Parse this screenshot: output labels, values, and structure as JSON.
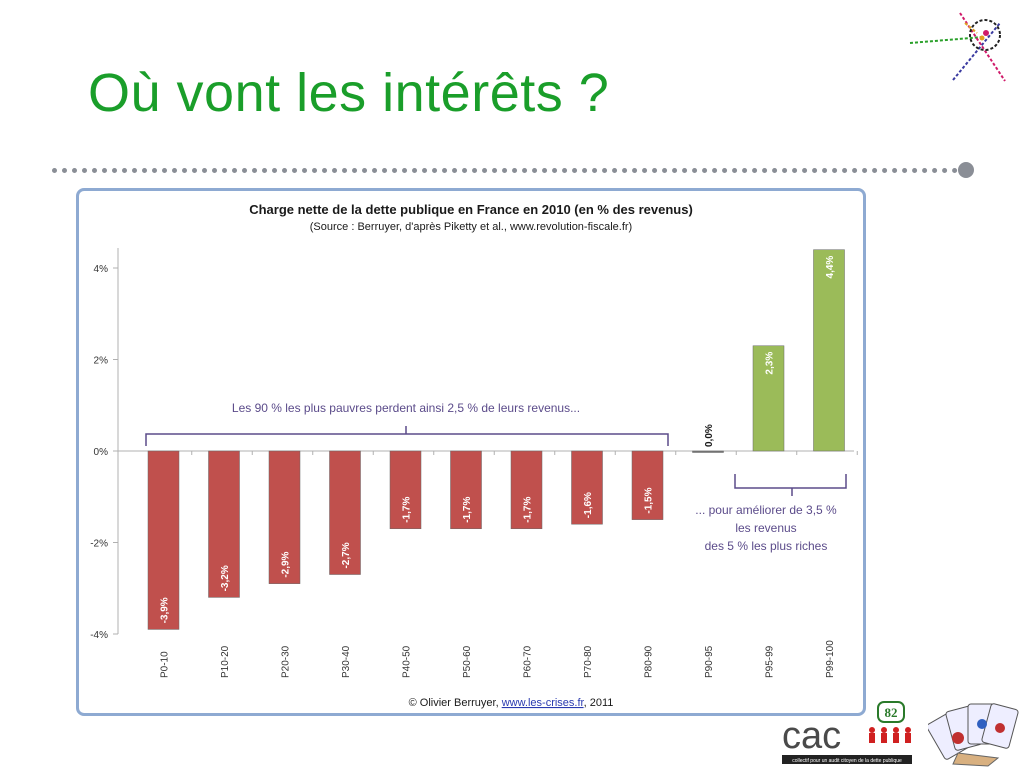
{
  "slide": {
    "title": "Où vont les intérêts ?"
  },
  "colors": {
    "title": "#1a9e2a",
    "negative_bar": "#c0504d",
    "positive_bar": "#9bbb59",
    "annotation": "#5b4b8a",
    "frame": "#8eaad2"
  },
  "chart_data": {
    "type": "bar",
    "title": "Charge nette de la dette publique en France en 2010 (en % des revenus)",
    "subtitle": "(Source : Berruyer, d'après Piketty et al., www.revolution-fiscale.fr)",
    "categories": [
      "P0-10",
      "P10-20",
      "P20-30",
      "P30-40",
      "P40-50",
      "P50-60",
      "P60-70",
      "P70-80",
      "P80-90",
      "P90-95",
      "P95-99",
      "P99-100"
    ],
    "values": [
      -3.9,
      -3.2,
      -2.9,
      -2.7,
      -1.7,
      -1.7,
      -1.7,
      -1.6,
      -1.5,
      0.0,
      2.3,
      4.4
    ],
    "data_labels": [
      "-3,9%",
      "-3,2%",
      "-2,9%",
      "-2,7%",
      "-1,7%",
      "-1,7%",
      "-1,7%",
      "-1,6%",
      "-1,5%",
      "0,0%",
      "2,3%",
      "4,4%"
    ],
    "ylim": [
      -4,
      4
    ],
    "yticks": [
      4,
      2,
      0,
      -2,
      -4
    ],
    "ytick_labels": [
      "4%",
      "2%",
      "0%",
      "-2%",
      "-4%"
    ],
    "grid": false,
    "annotations": {
      "left_bracket": "Les 90 % les plus pauvres perdent ainsi 2,5 % de leurs revenus...",
      "right_bracket_lines": [
        "... pour améliorer de 3,5 %",
        "les revenus",
        "des 5 % les plus riches"
      ]
    },
    "footer": {
      "prefix": "© Olivier Berruyer, ",
      "link": "www.les-crises.fr",
      "suffix": ", 2011"
    }
  },
  "logo": {
    "text": "cac",
    "badge": "82",
    "tagline": "collectif pour un audit citoyen de la dette publique"
  }
}
